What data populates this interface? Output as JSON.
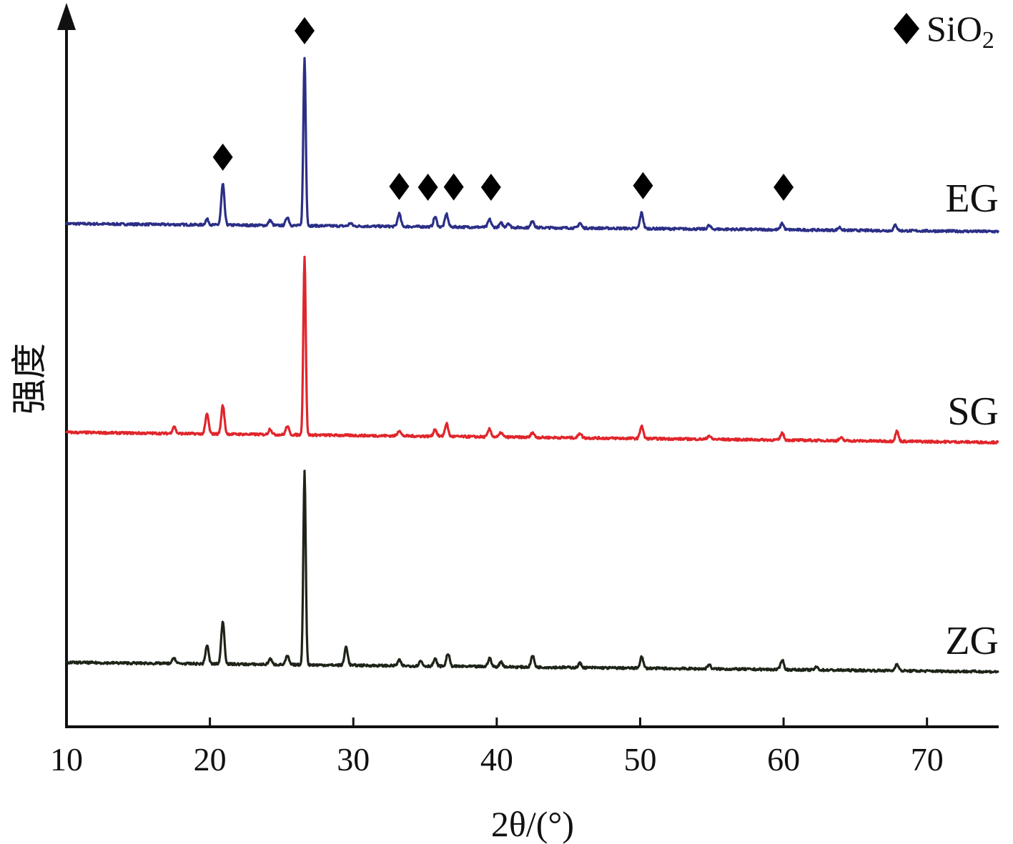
{
  "chart_data": {
    "type": "line",
    "xlabel": "2θ/(°)",
    "ylabel": "强度",
    "xlim": [
      10,
      75
    ],
    "xticks": [
      "10",
      "20",
      "30",
      "40",
      "50",
      "60",
      "70"
    ],
    "legend": {
      "symbol": "diamond",
      "label": "SiO",
      "subscript": "2",
      "placement": "top-right"
    },
    "marker_peaks_2theta": [
      20.9,
      26.6,
      33.2,
      35.2,
      37.0,
      39.6,
      50.2,
      60.0
    ],
    "series": [
      {
        "name": "EG",
        "color": "#2b2f86",
        "peaks": [
          [
            20.9,
            57
          ],
          [
            26.6,
            235
          ],
          [
            19.8,
            8
          ],
          [
            24.2,
            7
          ],
          [
            25.4,
            12
          ],
          [
            29.8,
            4
          ],
          [
            33.2,
            18
          ],
          [
            35.7,
            14
          ],
          [
            36.5,
            18
          ],
          [
            39.5,
            11
          ],
          [
            40.3,
            6
          ],
          [
            40.8,
            6
          ],
          [
            42.5,
            10
          ],
          [
            45.8,
            7
          ],
          [
            50.1,
            22
          ],
          [
            54.8,
            5
          ],
          [
            59.9,
            9
          ],
          [
            63.9,
            4
          ],
          [
            67.8,
            8
          ]
        ]
      },
      {
        "name": "SG",
        "color": "#e0262b",
        "peaks": [
          [
            17.5,
            10
          ],
          [
            19.8,
            28
          ],
          [
            20.9,
            40
          ],
          [
            24.2,
            8
          ],
          [
            25.4,
            12
          ],
          [
            26.6,
            250
          ],
          [
            33.2,
            8
          ],
          [
            35.7,
            10
          ],
          [
            36.5,
            18
          ],
          [
            39.5,
            11
          ],
          [
            40.3,
            6
          ],
          [
            42.5,
            7
          ],
          [
            45.8,
            7
          ],
          [
            50.1,
            18
          ],
          [
            54.8,
            5
          ],
          [
            59.9,
            10
          ],
          [
            64,
            4
          ],
          [
            67.9,
            14
          ]
        ]
      },
      {
        "name": "ZG",
        "color": "#1e2418",
        "peaks": [
          [
            17.5,
            8
          ],
          [
            19.8,
            26
          ],
          [
            20.9,
            60
          ],
          [
            24.2,
            8
          ],
          [
            25.4,
            12
          ],
          [
            26.6,
            270
          ],
          [
            29.5,
            26
          ],
          [
            33.2,
            8
          ],
          [
            34.7,
            7
          ],
          [
            35.7,
            10
          ],
          [
            36.6,
            18
          ],
          [
            39.5,
            12
          ],
          [
            40.3,
            7
          ],
          [
            42.5,
            16
          ],
          [
            45.8,
            6
          ],
          [
            50.1,
            16
          ],
          [
            54.8,
            6
          ],
          [
            59.9,
            14
          ],
          [
            62.3,
            4
          ],
          [
            67.9,
            10
          ]
        ]
      }
    ]
  }
}
